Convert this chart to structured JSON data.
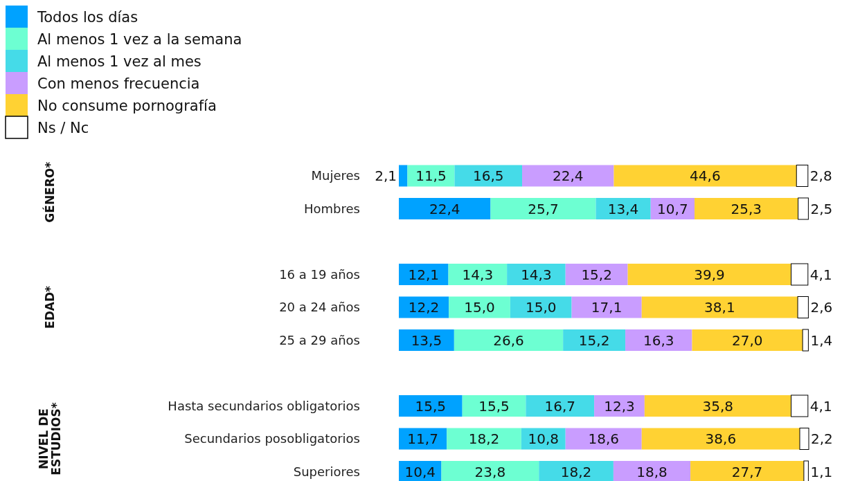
{
  "chart_data": {
    "type": "bar",
    "orientation": "horizontal",
    "stacked": true,
    "legend": "top left",
    "categories": [
      "Mujeres",
      "Hombres",
      null,
      "16 a 19 años",
      "20 a 24 años",
      "25 a 29 años",
      null,
      "Hasta secundarios obligatorios",
      "Secundarios posobligatorios",
      "Superiores"
    ],
    "annotations": [
      "GÉNERO*",
      "EDAD*",
      "NIVEL DE ESTUDIOS*"
    ],
    "series": [
      {
        "name": "Todos los días",
        "color": "#00a2ff",
        "values": [
          2.1,
          22.4,
          null,
          12.1,
          12.2,
          13.5,
          null,
          15.5,
          11.7,
          10.4
        ],
        "value_labels": [
          "2,1",
          "22,4",
          null,
          "12,1",
          "12,2",
          "13,5",
          null,
          "15,5",
          "11,7",
          "10,4"
        ]
      },
      {
        "name": "Al menos 1 vez a la semana",
        "color": "#6dffd2",
        "values": [
          11.5,
          25.7,
          null,
          14.3,
          15.0,
          26.6,
          null,
          15.5,
          18.2,
          23.8
        ],
        "value_labels": [
          "11,5",
          "25,7",
          null,
          "14,3",
          "15,0",
          "26,6",
          null,
          "15,5",
          "18,2",
          "23,8"
        ]
      },
      {
        "name": "Al menos 1 vez al mes",
        "color": "#45dbe8",
        "values": [
          16.5,
          13.4,
          null,
          14.3,
          15.0,
          15.2,
          null,
          16.7,
          10.8,
          18.2
        ],
        "value_labels": [
          "16,5",
          "13,4",
          null,
          "14,3",
          "15,0",
          "15,2",
          null,
          "16,7",
          "10,8",
          "18,2"
        ]
      },
      {
        "name": "Con menos frecuencia",
        "color": "#c99dff",
        "values": [
          22.4,
          10.7,
          null,
          15.2,
          17.1,
          16.3,
          null,
          12.3,
          18.6,
          18.8
        ],
        "value_labels": [
          "22,4",
          "10,7",
          null,
          "15,2",
          "17,1",
          "16,3",
          null,
          "12,3",
          "18,6",
          "18,8"
        ]
      },
      {
        "name": "No consume pornografía",
        "color": "#ffd233",
        "values": [
          44.6,
          25.3,
          null,
          39.9,
          38.1,
          27.0,
          null,
          35.8,
          38.6,
          27.7
        ],
        "value_labels": [
          "44,6",
          "25,3",
          null,
          "39,9",
          "38,1",
          "27,0",
          null,
          "35,8",
          "38,6",
          "27,7"
        ]
      },
      {
        "name": "Ns / Nc",
        "color": "#ffffff",
        "values": [
          2.8,
          2.5,
          null,
          4.1,
          2.6,
          1.4,
          null,
          4.1,
          2.2,
          1.1
        ],
        "value_labels": [
          "2,8",
          "2,5",
          null,
          "4,1",
          "2,6",
          "1,4",
          null,
          "4,1",
          "2,2",
          "1,1"
        ]
      }
    ]
  }
}
